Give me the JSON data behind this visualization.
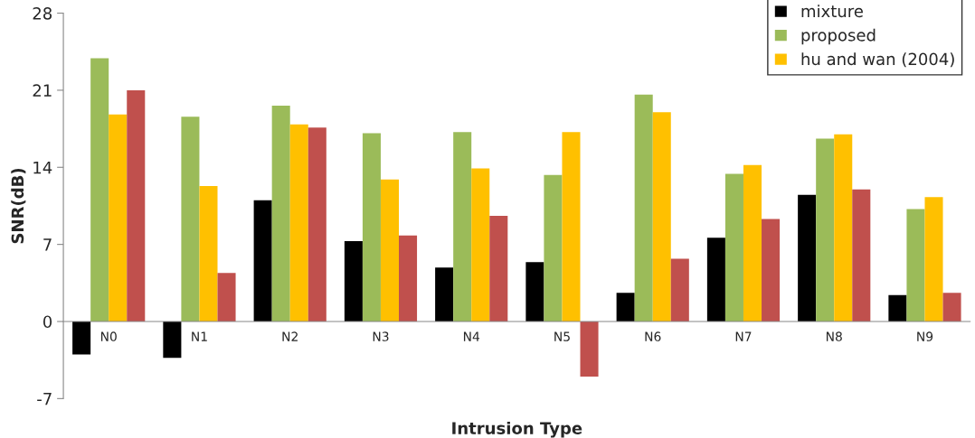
{
  "chart_data": {
    "type": "bar",
    "xlabel": "Intrusion Type",
    "ylabel": "SNR(dB)",
    "categories": [
      "N0",
      "N1",
      "N2",
      "N3",
      "N4",
      "N5",
      "N6",
      "N7",
      "N8",
      "N9"
    ],
    "series": [
      {
        "name": "mixture",
        "color": "#000000",
        "values": [
          -3.0,
          -3.3,
          11.0,
          7.3,
          4.9,
          5.4,
          2.6,
          7.6,
          11.5,
          2.4
        ]
      },
      {
        "name": "proposed",
        "color": "#9bbb59",
        "values": [
          23.9,
          18.6,
          19.6,
          17.1,
          17.2,
          13.3,
          20.6,
          13.4,
          16.6,
          10.2
        ]
      },
      {
        "name": "hu and wan (2004)",
        "color": "#ffc000",
        "values": [
          18.8,
          12.3,
          17.9,
          12.9,
          13.9,
          17.2,
          19.0,
          14.2,
          17.0,
          11.3
        ]
      },
      {
        "color": "#c0504d",
        "values": [
          21.0,
          4.4,
          17.6,
          7.8,
          9.6,
          -5.0,
          5.7,
          9.3,
          12.0,
          2.6
        ]
      }
    ],
    "ylim": [
      -7,
      28
    ],
    "yticks": [
      -7,
      0,
      7,
      14,
      21,
      28
    ],
    "grid": false,
    "legend": "top right"
  }
}
